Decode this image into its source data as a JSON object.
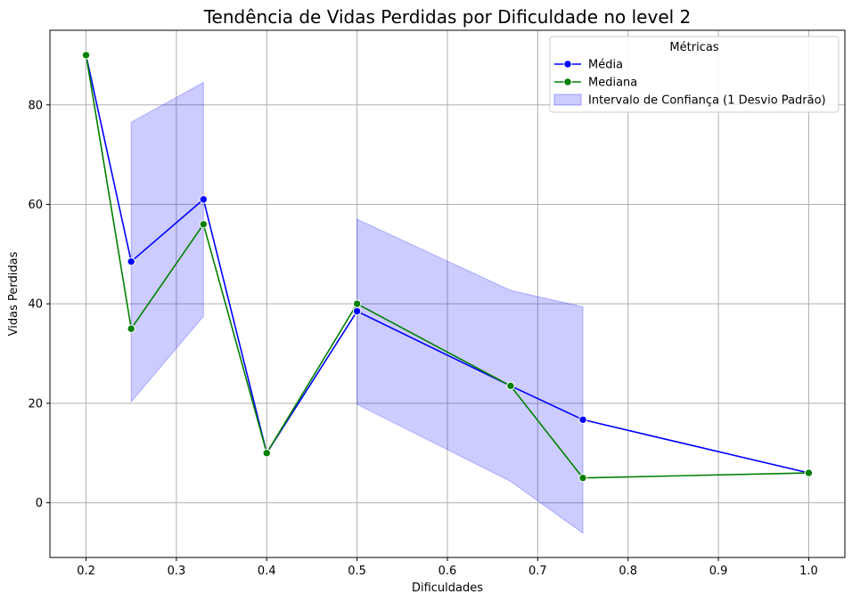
{
  "chart_data": {
    "type": "line",
    "title": "Tendência de Vidas Perdidas por Dificuldade no level 2",
    "xlabel": "Dificuldades",
    "ylabel": "Vidas Perdidas",
    "xlim": [
      0.16,
      1.04
    ],
    "ylim": [
      -11,
      95
    ],
    "xticks": [
      "0.2",
      "0.3",
      "0.4",
      "0.5",
      "0.6",
      "0.7",
      "0.8",
      "0.9",
      "1.0"
    ],
    "yticks": [
      "0",
      "20",
      "40",
      "60",
      "80"
    ],
    "grid": true,
    "legend": {
      "title": "Métricas",
      "position": "top-right",
      "entries": [
        "Média",
        "Mediana",
        "Intervalo de Confiança (1 Desvio Padrão)"
      ]
    },
    "series": [
      {
        "name": "Média",
        "color": "#0000ff",
        "x": [
          0.2,
          0.25,
          0.33,
          0.4,
          0.5,
          0.67,
          0.75,
          1.0
        ],
        "values": [
          90,
          48.5,
          61,
          10,
          38.5,
          23.5,
          16.7,
          6
        ]
      },
      {
        "name": "Mediana",
        "color": "#008000",
        "x": [
          0.2,
          0.25,
          0.33,
          0.4,
          0.5,
          0.67,
          0.75,
          1.0
        ],
        "values": [
          90,
          35,
          56,
          10,
          40,
          23.5,
          5,
          6
        ]
      }
    ],
    "bands": [
      {
        "name": "Intervalo de Confiança (1 Desvio Padrão)",
        "color": "#0000ff",
        "segments": [
          {
            "x": [
              0.25,
              0.33
            ],
            "upper": [
              76.5,
              84.5
            ],
            "lower": [
              20.3,
              37.5
            ]
          },
          {
            "x": [
              0.5,
              0.67,
              0.75
            ],
            "upper": [
              57,
              42.7,
              39.4
            ],
            "lower": [
              19.8,
              4.3,
              -6.1
            ]
          }
        ]
      }
    ]
  }
}
